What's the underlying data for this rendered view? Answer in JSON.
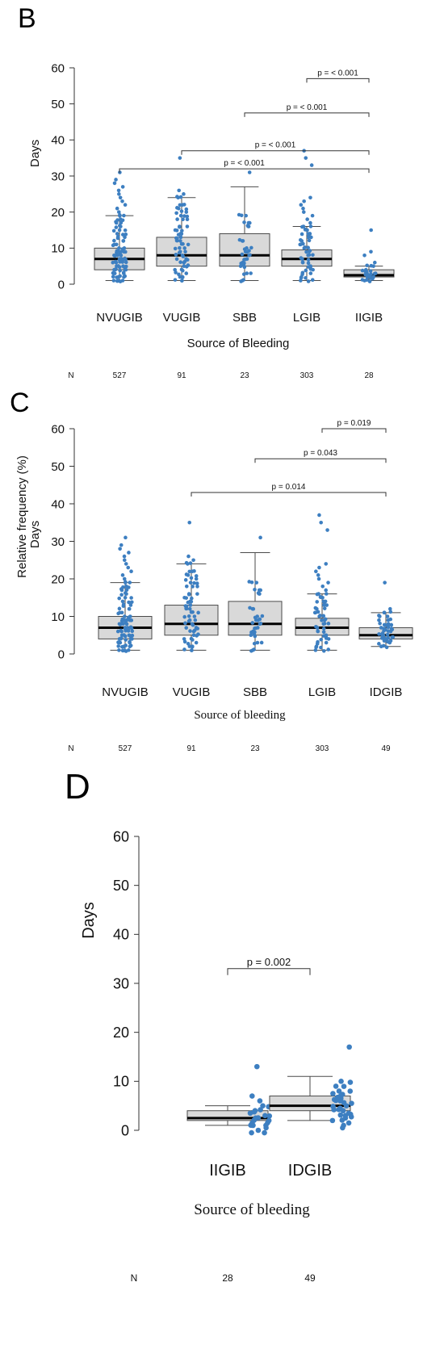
{
  "panels": [
    {
      "label": "B",
      "xlabel": "Source of Bleeding",
      "ylabel": "Days",
      "n_label": "N",
      "chart_data": {
        "type": "box",
        "title": "",
        "xlabel": "Source of Bleeding",
        "ylabel": "Days",
        "ylim": [
          0,
          60
        ],
        "yticks": [
          0,
          10,
          20,
          30,
          40,
          50,
          60
        ],
        "categories": [
          "NVUGIB",
          "VUGIB",
          "SBB",
          "LGIB",
          "IIGIB"
        ],
        "n": [
          "527",
          "91",
          "23",
          "303",
          "28"
        ],
        "boxes": [
          {
            "q1": 4,
            "median": 7,
            "q3": 10,
            "whisker_low": 1,
            "whisker_high": 19,
            "points": [
              1,
              1,
              2,
              2,
              3,
              3,
              4,
              4,
              5,
              5,
              6,
              6,
              7,
              7,
              8,
              8,
              9,
              9,
              10,
              11,
              12,
              13,
              14,
              15,
              16,
              17,
              18,
              19,
              20,
              21,
              22,
              23,
              24,
              25,
              26,
              27,
              28,
              29,
              31
            ]
          },
          {
            "q1": 5,
            "median": 8,
            "q3": 13,
            "whisker_low": 1,
            "whisker_high": 24,
            "points": [
              1,
              2,
              3,
              4,
              5,
              6,
              7,
              8,
              9,
              10,
              11,
              12,
              13,
              14,
              15,
              16,
              18,
              19,
              20,
              21,
              22,
              24,
              25,
              26,
              35
            ]
          },
          {
            "q1": 5,
            "median": 8,
            "q3": 14,
            "whisker_low": 1,
            "whisker_high": 27,
            "points": [
              1,
              3,
              5,
              6,
              7,
              8,
              9,
              10,
              12,
              16,
              17,
              19,
              31
            ]
          },
          {
            "q1": 5,
            "median": 7,
            "q3": 9.5,
            "whisker_low": 1,
            "whisker_high": 16,
            "points": [
              1,
              2,
              3,
              4,
              5,
              6,
              7,
              8,
              9,
              10,
              11,
              12,
              13,
              14,
              15,
              16,
              17,
              18,
              19,
              20,
              21,
              22,
              23,
              24,
              33,
              35,
              37
            ]
          },
          {
            "q1": 2,
            "median": 2.5,
            "q3": 4,
            "whisker_low": 1,
            "whisker_high": 5,
            "points": [
              1,
              1.5,
              2,
              2.5,
              3,
              3.5,
              4,
              5,
              6,
              8,
              9,
              15
            ]
          }
        ],
        "comparisons": [
          {
            "from": 3,
            "to": 4,
            "label": "p = < 0.001",
            "y": 57
          },
          {
            "from": 2,
            "to": 4,
            "label": "p = < 0.001",
            "y": 47.5
          },
          {
            "from": 1,
            "to": 4,
            "label": "p = < 0.001",
            "y": 37
          },
          {
            "from": 0,
            "to": 4,
            "label": "p = < 0.001",
            "y": 32
          }
        ]
      }
    },
    {
      "label": "C",
      "xlabel": "Source of bleeding",
      "ylabel": "Days",
      "ylabel_overlay": "Relative frequency (%)",
      "n_label": "N",
      "chart_data": {
        "type": "box",
        "title": "",
        "xlabel": "Source of bleeding",
        "ylabel": "Days",
        "ylim": [
          0,
          60
        ],
        "yticks": [
          0,
          10,
          20,
          30,
          40,
          50,
          60
        ],
        "categories": [
          "NVUGIB",
          "VUGIB",
          "SBB",
          "LGIB",
          "IDGIB"
        ],
        "n": [
          "527",
          "91",
          "23",
          "303",
          "49"
        ],
        "boxes": [
          {
            "q1": 4,
            "median": 7,
            "q3": 10,
            "whisker_low": 1,
            "whisker_high": 19,
            "points": [
              1,
              1,
              2,
              2,
              3,
              3,
              4,
              4,
              5,
              5,
              6,
              6,
              7,
              7,
              8,
              8,
              9,
              9,
              10,
              11,
              12,
              13,
              14,
              15,
              16,
              17,
              18,
              19,
              20,
              21,
              22,
              23,
              24,
              25,
              26,
              27,
              28,
              29,
              31
            ]
          },
          {
            "q1": 5,
            "median": 8,
            "q3": 13,
            "whisker_low": 1,
            "whisker_high": 24,
            "points": [
              1,
              2,
              3,
              4,
              5,
              6,
              7,
              8,
              9,
              10,
              11,
              12,
              13,
              14,
              15,
              16,
              18,
              19,
              20,
              21,
              22,
              24,
              25,
              26,
              35
            ]
          },
          {
            "q1": 5,
            "median": 8,
            "q3": 14,
            "whisker_low": 1,
            "whisker_high": 27,
            "points": [
              1,
              3,
              5,
              6,
              7,
              8,
              9,
              10,
              12,
              16,
              17,
              19,
              31
            ]
          },
          {
            "q1": 5,
            "median": 7,
            "q3": 9.5,
            "whisker_low": 1,
            "whisker_high": 16,
            "points": [
              1,
              2,
              3,
              4,
              5,
              6,
              7,
              8,
              9,
              10,
              11,
              12,
              13,
              14,
              15,
              16,
              17,
              18,
              19,
              20,
              21,
              22,
              23,
              24,
              33,
              35,
              37
            ]
          },
          {
            "q1": 4,
            "median": 5,
            "q3": 7,
            "whisker_low": 2,
            "whisker_high": 11,
            "points": [
              2,
              3,
              3.5,
              4,
              4.5,
              5,
              5.5,
              6,
              6.5,
              7,
              7.5,
              8,
              9,
              10,
              11,
              12,
              19
            ]
          }
        ],
        "comparisons": [
          {
            "from": 3,
            "to": 4,
            "label": "p = 0.019",
            "y": 60
          },
          {
            "from": 2,
            "to": 4,
            "label": "p = 0.043",
            "y": 52
          }
        ],
        "comparisons_low": [
          {
            "from": 1,
            "to": 4,
            "label": "p = 0.014",
            "y": 43
          }
        ]
      }
    },
    {
      "label": "D",
      "xlabel": "Source of bleeding",
      "ylabel": "Days",
      "n_label": "N",
      "chart_data": {
        "type": "box",
        "title": "",
        "xlabel": "Source of bleeding",
        "ylabel": "Days",
        "ylim": [
          0,
          60
        ],
        "yticks": [
          0,
          10,
          20,
          30,
          40,
          50,
          60
        ],
        "categories": [
          "IIGIB",
          "IDGIB"
        ],
        "n": [
          "28",
          "49"
        ],
        "boxes": [
          {
            "q1": 2,
            "median": 2.5,
            "q3": 4,
            "whisker_low": 1,
            "whisker_high": 5,
            "points": [
              -0.5,
              -0.5,
              0,
              0.5,
              1,
              1,
              1.5,
              2,
              2.5,
              3,
              3.5,
              4,
              5,
              6,
              7,
              13
            ]
          },
          {
            "q1": 4,
            "median": 5,
            "q3": 7,
            "whisker_low": 2,
            "whisker_high": 11,
            "points": [
              0.5,
              1,
              1.5,
              2,
              2.5,
              3,
              3.5,
              4,
              4.5,
              5,
              5.5,
              6,
              6.5,
              7,
              7.5,
              8,
              9,
              10,
              17
            ]
          }
        ],
        "comparisons": [
          {
            "from": 0,
            "to": 1,
            "label": "p = 0.002",
            "y": 33
          }
        ]
      }
    }
  ],
  "colors": {
    "box_fill": "#d9d9d9",
    "box_stroke": "#4a4a4a",
    "median": "#000000",
    "points": "#3d7fc1",
    "axis": "#333333"
  }
}
